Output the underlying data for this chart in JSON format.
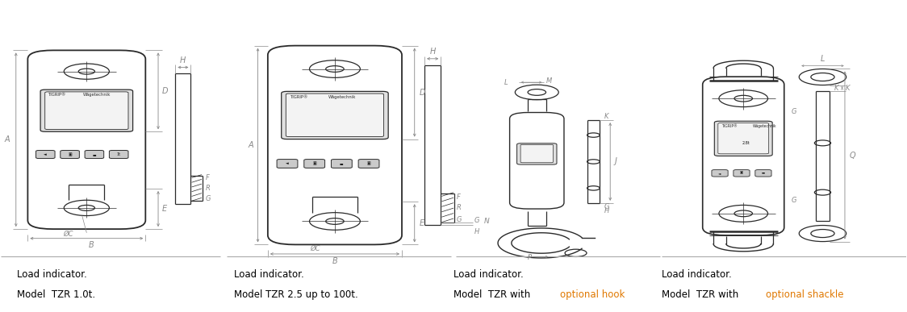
{
  "bg_color": "#ffffff",
  "line_color": "#2a2a2a",
  "dim_color": "#888888",
  "orange_color": "#e07800",
  "sep_color": "#aaaaaa",
  "captions": {
    "s1_l1": "Load indicator.",
    "s1_l2": "Model  TZR 1.0t.",
    "s2_l1": "Load indicator.",
    "s2_l2": "Model TZR 2.5 up to 100t.",
    "s3_l1": "Load indicator.",
    "s3_l2a": "Model  TZR with ",
    "s3_l2b": "optional hook",
    "s4_l1": "Load indicator.",
    "s4_l2a": "Model  TZR with ",
    "s4_l2b": "optional shackle"
  },
  "cap_fontsize": 8.5,
  "dim_fontsize": 7,
  "label_fontsize": 6
}
